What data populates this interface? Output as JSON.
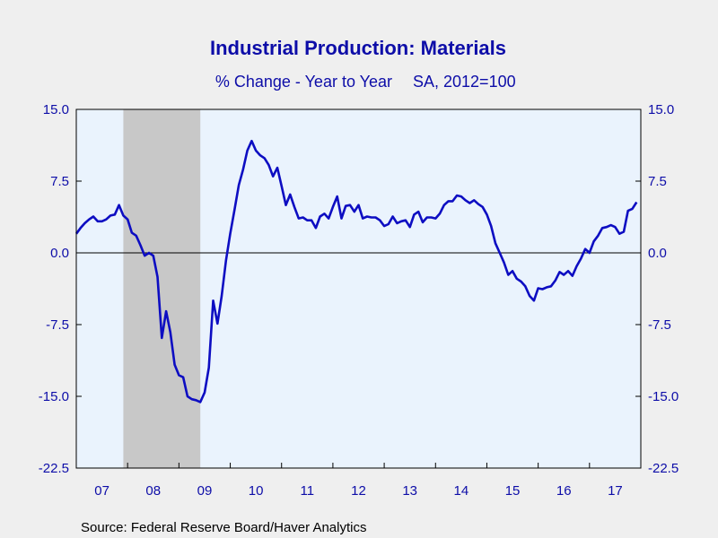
{
  "chart_data": {
    "type": "line",
    "title": "Industrial Production: Materials",
    "subtitle_left": "% Change - Year to Year",
    "subtitle_right": "SA, 2012=100",
    "source": "Source:  Federal Reserve Board/Haver Analytics",
    "ylim": [
      -22.5,
      15.0
    ],
    "yticks": [
      "15.0",
      "7.5",
      "0.0",
      "-7.5",
      "-15.0",
      "-22.5"
    ],
    "ytick_values": [
      15.0,
      7.5,
      0.0,
      -7.5,
      -15.0,
      -22.5
    ],
    "xlim": [
      2007.0,
      2018.0
    ],
    "xtick_labels": [
      "07",
      "08",
      "09",
      "10",
      "11",
      "12",
      "13",
      "14",
      "15",
      "16",
      "17"
    ],
    "recession": [
      2007.917,
      2009.417
    ],
    "zero_line": true,
    "colors": {
      "line": "#0d0dc2",
      "recession": "#c8c8c8",
      "plot_bg": "#eaf3fd",
      "text": "#0d0da8"
    },
    "series": [
      {
        "x": [
          2007.0,
          2007.083,
          2007.167,
          2007.25,
          2007.333,
          2007.417,
          2007.5,
          2007.583,
          2007.667,
          2007.75,
          2007.833,
          2007.917,
          2008.0,
          2008.083,
          2008.167,
          2008.25,
          2008.333,
          2008.417,
          2008.5,
          2008.583,
          2008.667,
          2008.75,
          2008.833,
          2008.917,
          2009.0,
          2009.083,
          2009.167,
          2009.25,
          2009.333,
          2009.417,
          2009.5,
          2009.583,
          2009.667,
          2009.75,
          2009.833,
          2009.917,
          2010.0,
          2010.083,
          2010.167,
          2010.25,
          2010.333,
          2010.417,
          2010.5,
          2010.583,
          2010.667,
          2010.75,
          2010.833,
          2010.917,
          2011.0,
          2011.083,
          2011.167,
          2011.25,
          2011.333,
          2011.417,
          2011.5,
          2011.583,
          2011.667,
          2011.75,
          2011.833,
          2011.917,
          2012.0,
          2012.083,
          2012.167,
          2012.25,
          2012.333,
          2012.417,
          2012.5,
          2012.583,
          2012.667,
          2012.75,
          2012.833,
          2012.917,
          2013.0,
          2013.083,
          2013.167,
          2013.25,
          2013.333,
          2013.417,
          2013.5,
          2013.583,
          2013.667,
          2013.75,
          2013.833,
          2013.917,
          2014.0,
          2014.083,
          2014.167,
          2014.25,
          2014.333,
          2014.417,
          2014.5,
          2014.583,
          2014.667,
          2014.75,
          2014.833,
          2014.917,
          2015.0,
          2015.083,
          2015.167,
          2015.25,
          2015.333,
          2015.417,
          2015.5,
          2015.583,
          2015.667,
          2015.75,
          2015.833,
          2015.917,
          2016.0,
          2016.083,
          2016.167,
          2016.25,
          2016.333,
          2016.417,
          2016.5,
          2016.583,
          2016.667,
          2016.75,
          2016.833,
          2016.917,
          2017.0,
          2017.083,
          2017.167,
          2017.25,
          2017.333,
          2017.417,
          2017.5,
          2017.583,
          2017.667,
          2017.75,
          2017.833,
          2017.917
        ],
        "y": [
          2.0,
          2.6,
          3.1,
          3.5,
          3.8,
          3.3,
          3.3,
          3.5,
          3.9,
          4.0,
          5.0,
          3.9,
          3.5,
          2.1,
          1.8,
          0.8,
          -0.3,
          0.0,
          -0.3,
          -2.5,
          -8.9,
          -6.1,
          -8.3,
          -11.7,
          -12.8,
          -13.0,
          -15.0,
          -15.3,
          -15.4,
          -15.6,
          -14.6,
          -12.0,
          -5.0,
          -7.4,
          -4.5,
          -0.8,
          2.0,
          4.5,
          7.1,
          8.7,
          10.7,
          11.7,
          10.7,
          10.2,
          9.9,
          9.2,
          8.0,
          8.9,
          7.0,
          5.0,
          6.1,
          4.8,
          3.6,
          3.7,
          3.4,
          3.4,
          2.6,
          3.8,
          4.1,
          3.6,
          4.8,
          5.9,
          3.6,
          4.9,
          5.0,
          4.3,
          5.0,
          3.6,
          3.8,
          3.7,
          3.7,
          3.4,
          2.8,
          3.0,
          3.8,
          3.1,
          3.3,
          3.4,
          2.7,
          4.0,
          4.3,
          3.2,
          3.7,
          3.7,
          3.6,
          4.1,
          5.0,
          5.4,
          5.4,
          6.0,
          5.9,
          5.5,
          5.2,
          5.5,
          5.1,
          4.8,
          4.0,
          2.8,
          1.0,
          0.0,
          -1.0,
          -2.3,
          -1.9,
          -2.7,
          -3.0,
          -3.5,
          -4.5,
          -5.0,
          -3.7,
          -3.8,
          -3.6,
          -3.5,
          -2.9,
          -2.0,
          -2.3,
          -1.9,
          -2.4,
          -1.4,
          -0.6,
          0.4,
          0.0,
          1.2,
          1.8,
          2.6,
          2.7,
          2.9,
          2.7,
          2.0,
          2.2,
          4.4,
          4.6,
          5.3
        ]
      }
    ]
  }
}
